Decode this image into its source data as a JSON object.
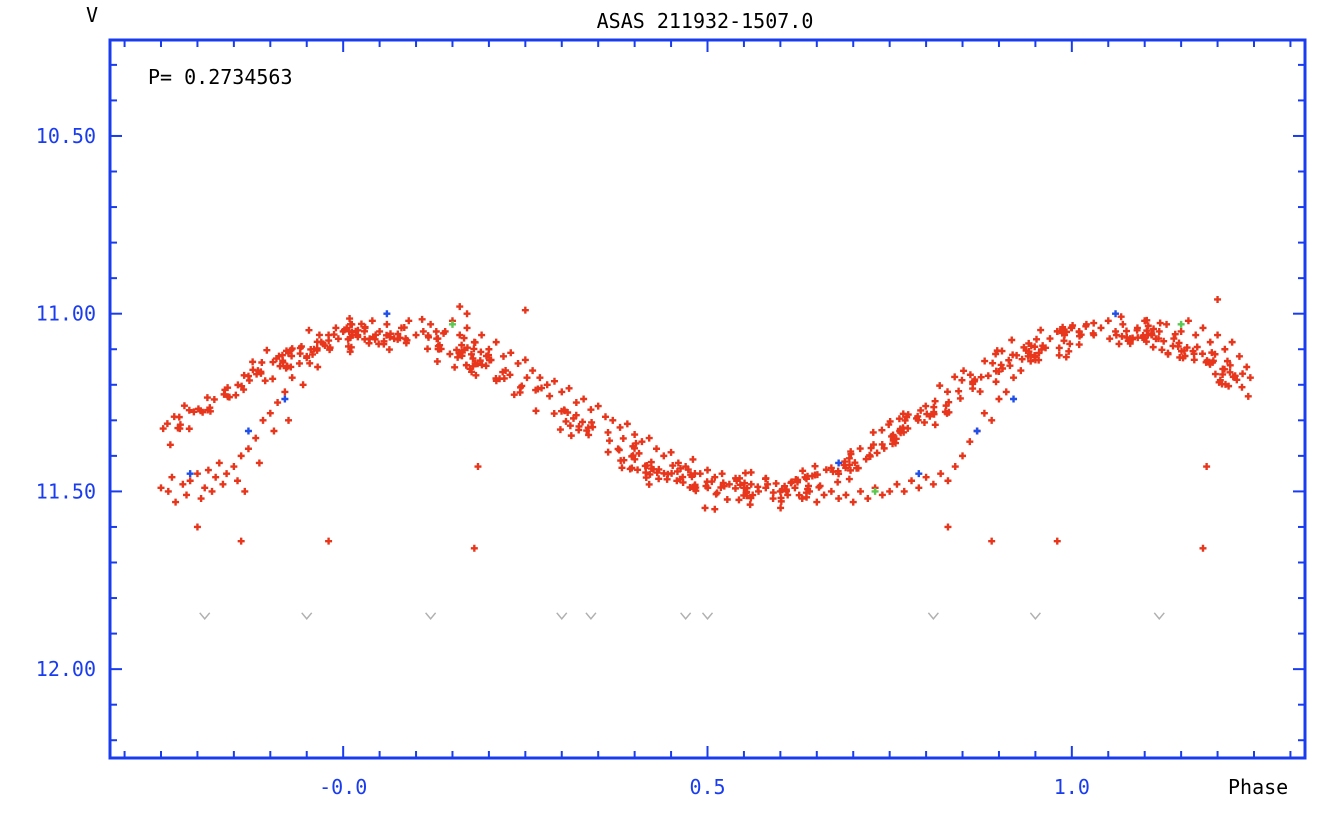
{
  "chart_data": {
    "type": "scatter",
    "title": "ASAS 211932-1507.0",
    "ylabel": "V",
    "xlabel": "Phase",
    "annotation": "P= 0.2734563",
    "xlim": [
      -0.32,
      1.32
    ],
    "ylim": [
      12.25,
      10.23
    ],
    "y_inverted": true,
    "x_ticks": [
      -0.0,
      0.5,
      1.0
    ],
    "x_tick_labels": [
      "-0.0",
      "0.5",
      "1.0"
    ],
    "y_ticks": [
      10.5,
      11.0,
      11.5,
      12.0
    ],
    "y_tick_labels": [
      "10.50",
      "11.00",
      "11.50",
      "12.00"
    ],
    "grid": false,
    "period": 0.2734563,
    "light_curve_model": {
      "description": "phase-folded sinusoid read from the plot",
      "mean_mag": 11.28,
      "amplitude": 0.225,
      "max_phase": 0.05,
      "phase_range": [
        -0.25,
        1.25
      ]
    },
    "series": [
      {
        "name": "",
        "color": "#e8361c",
        "marker": "plus",
        "points": [
          [
            -0.25,
            11.49
          ],
          [
            -0.24,
            11.5
          ],
          [
            -0.235,
            11.46
          ],
          [
            -0.23,
            11.53
          ],
          [
            -0.22,
            11.48
          ],
          [
            -0.215,
            11.51
          ],
          [
            -0.21,
            11.47
          ],
          [
            -0.2,
            11.45
          ],
          [
            -0.195,
            11.52
          ],
          [
            -0.19,
            11.49
          ],
          [
            -0.185,
            11.44
          ],
          [
            -0.18,
            11.5
          ],
          [
            -0.175,
            11.46
          ],
          [
            -0.17,
            11.42
          ],
          [
            -0.165,
            11.48
          ],
          [
            -0.16,
            11.45
          ],
          [
            -0.15,
            11.43
          ],
          [
            -0.145,
            11.47
          ],
          [
            -0.14,
            11.4
          ],
          [
            -0.135,
            11.5
          ],
          [
            -0.13,
            11.38
          ],
          [
            -0.12,
            11.35
          ],
          [
            -0.115,
            11.42
          ],
          [
            -0.11,
            11.3
          ],
          [
            -0.1,
            11.28
          ],
          [
            -0.095,
            11.33
          ],
          [
            -0.09,
            11.25
          ],
          [
            -0.08,
            11.22
          ],
          [
            -0.075,
            11.3
          ],
          [
            -0.07,
            11.18
          ],
          [
            -0.06,
            11.14
          ],
          [
            -0.055,
            11.2
          ],
          [
            -0.05,
            11.12
          ],
          [
            -0.04,
            11.1
          ],
          [
            -0.035,
            11.15
          ],
          [
            -0.03,
            11.08
          ],
          [
            -0.02,
            11.06
          ],
          [
            -0.01,
            11.04
          ],
          [
            0.0,
            11.05
          ],
          [
            0.01,
            11.03
          ],
          [
            0.02,
            11.06
          ],
          [
            0.03,
            11.04
          ],
          [
            0.04,
            11.02
          ],
          [
            0.05,
            11.05
          ],
          [
            0.06,
            11.03
          ],
          [
            0.07,
            11.07
          ],
          [
            0.08,
            11.04
          ],
          [
            0.09,
            11.02
          ],
          [
            0.1,
            11.06
          ],
          [
            0.11,
            11.05
          ],
          [
            0.12,
            11.03
          ],
          [
            0.13,
            11.07
          ],
          [
            0.14,
            11.05
          ],
          [
            0.15,
            11.02
          ],
          [
            0.16,
            11.06
          ],
          [
            0.17,
            11.04
          ],
          [
            0.18,
            11.08
          ],
          [
            0.19,
            11.06
          ],
          [
            0.2,
            11.1
          ],
          [
            0.21,
            11.08
          ],
          [
            0.22,
            11.12
          ],
          [
            0.23,
            11.11
          ],
          [
            0.24,
            11.14
          ],
          [
            0.25,
            11.13
          ],
          [
            0.26,
            11.16
          ],
          [
            0.27,
            11.18
          ],
          [
            0.28,
            11.2
          ],
          [
            0.29,
            11.19
          ],
          [
            0.3,
            11.22
          ],
          [
            0.31,
            11.21
          ],
          [
            0.32,
            11.25
          ],
          [
            0.33,
            11.24
          ],
          [
            0.34,
            11.27
          ],
          [
            0.35,
            11.26
          ],
          [
            0.36,
            11.29
          ],
          [
            0.37,
            11.3
          ],
          [
            0.38,
            11.32
          ],
          [
            0.39,
            11.31
          ],
          [
            0.4,
            11.34
          ],
          [
            0.41,
            11.36
          ],
          [
            0.42,
            11.35
          ],
          [
            0.43,
            11.38
          ],
          [
            0.44,
            11.4
          ],
          [
            0.45,
            11.39
          ],
          [
            0.46,
            11.42
          ],
          [
            0.47,
            11.43
          ],
          [
            0.48,
            11.41
          ],
          [
            0.49,
            11.45
          ],
          [
            0.5,
            11.44
          ],
          [
            0.51,
            11.46
          ],
          [
            0.52,
            11.45
          ],
          [
            0.53,
            11.48
          ],
          [
            0.54,
            11.47
          ],
          [
            0.55,
            11.49
          ],
          [
            0.56,
            11.48
          ],
          [
            0.57,
            11.5
          ],
          [
            0.58,
            11.49
          ],
          [
            0.59,
            11.52
          ],
          [
            0.6,
            11.5
          ],
          [
            0.61,
            11.51
          ],
          [
            0.62,
            11.49
          ],
          [
            0.63,
            11.52
          ],
          [
            0.64,
            11.5
          ],
          [
            0.65,
            11.53
          ],
          [
            0.66,
            11.51
          ],
          [
            0.67,
            11.5
          ],
          [
            0.68,
            11.52
          ],
          [
            0.69,
            11.51
          ],
          [
            0.7,
            11.53
          ],
          [
            0.71,
            11.5
          ],
          [
            0.72,
            11.52
          ],
          [
            0.73,
            11.49
          ],
          [
            0.74,
            11.51
          ],
          [
            0.75,
            11.5
          ],
          [
            0.76,
            11.48
          ],
          [
            0.77,
            11.5
          ],
          [
            0.78,
            11.47
          ],
          [
            0.79,
            11.49
          ],
          [
            0.8,
            11.46
          ],
          [
            0.81,
            11.48
          ],
          [
            0.82,
            11.45
          ],
          [
            0.83,
            11.47
          ],
          [
            0.84,
            11.43
          ],
          [
            0.85,
            11.4
          ],
          [
            0.86,
            11.36
          ],
          [
            0.87,
            11.33
          ],
          [
            0.88,
            11.28
          ],
          [
            0.89,
            11.3
          ],
          [
            0.9,
            11.24
          ],
          [
            0.91,
            11.22
          ],
          [
            0.92,
            11.18
          ],
          [
            0.93,
            11.16
          ],
          [
            0.94,
            11.12
          ],
          [
            0.95,
            11.13
          ],
          [
            0.96,
            11.09
          ],
          [
            0.97,
            11.07
          ],
          [
            0.98,
            11.05
          ],
          [
            0.99,
            11.06
          ],
          [
            1.0,
            11.04
          ],
          [
            1.01,
            11.05
          ],
          [
            1.02,
            11.03
          ],
          [
            1.03,
            11.06
          ],
          [
            1.04,
            11.04
          ],
          [
            1.05,
            11.02
          ],
          [
            1.06,
            11.05
          ],
          [
            1.07,
            11.03
          ],
          [
            1.08,
            11.07
          ],
          [
            1.09,
            11.04
          ],
          [
            1.1,
            11.02
          ],
          [
            1.11,
            11.06
          ],
          [
            1.12,
            11.05
          ],
          [
            1.13,
            11.03
          ],
          [
            1.14,
            11.07
          ],
          [
            1.15,
            11.05
          ],
          [
            1.16,
            11.02
          ],
          [
            1.17,
            11.06
          ],
          [
            1.18,
            11.04
          ],
          [
            1.19,
            11.08
          ],
          [
            1.2,
            11.06
          ],
          [
            1.21,
            11.1
          ],
          [
            1.22,
            11.08
          ],
          [
            1.23,
            11.12
          ],
          [
            1.24,
            11.15
          ],
          [
            1.245,
            11.18
          ],
          [
            -0.2,
            11.6
          ],
          [
            -0.14,
            11.64
          ],
          [
            -0.02,
            11.64
          ],
          [
            0.18,
            11.66
          ],
          [
            0.185,
            11.43
          ],
          [
            0.51,
            11.55
          ],
          [
            0.83,
            11.6
          ],
          [
            0.89,
            11.64
          ],
          [
            0.98,
            11.64
          ],
          [
            1.18,
            11.66
          ],
          [
            1.185,
            11.43
          ],
          [
            0.16,
            10.98
          ],
          [
            0.17,
            11.0
          ],
          [
            0.25,
            10.99
          ],
          [
            1.2,
            10.96
          ]
        ]
      },
      {
        "name": "",
        "color": "#2050e8",
        "marker": "plus",
        "points": [
          [
            -0.21,
            11.45
          ],
          [
            -0.13,
            11.33
          ],
          [
            -0.08,
            11.24
          ],
          [
            0.06,
            11.0
          ],
          [
            0.68,
            11.42
          ],
          [
            0.79,
            11.45
          ],
          [
            0.87,
            11.33
          ],
          [
            0.92,
            11.24
          ],
          [
            1.06,
            11.0
          ]
        ]
      },
      {
        "name": "",
        "color": "#5cc850",
        "marker": "plus",
        "points": [
          [
            0.15,
            11.03
          ],
          [
            0.73,
            11.5
          ],
          [
            1.15,
            11.03
          ]
        ]
      },
      {
        "name": "",
        "color": "#b0b0b0",
        "marker": "v",
        "points": [
          [
            -0.19,
            11.85
          ],
          [
            -0.05,
            11.85
          ],
          [
            0.12,
            11.85
          ],
          [
            0.3,
            11.85
          ],
          [
            0.34,
            11.85
          ],
          [
            0.47,
            11.85
          ],
          [
            0.5,
            11.85
          ],
          [
            0.81,
            11.85
          ],
          [
            0.95,
            11.85
          ],
          [
            1.12,
            11.85
          ]
        ]
      }
    ]
  }
}
